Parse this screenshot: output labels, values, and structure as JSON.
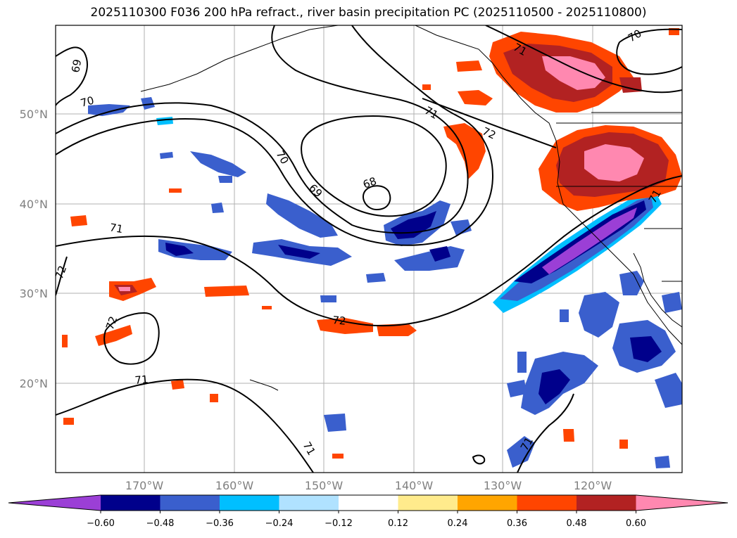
{
  "title": "2025110300 F036 200 hPa refract., river basin precipitation PC (2025110500 - 2025110800)",
  "lat_labels": [
    "50°N",
    "40°N",
    "30°N",
    "20°N"
  ],
  "lon_labels": [
    "170°W",
    "160°W",
    "150°W",
    "140°W",
    "130°W",
    "120°W"
  ],
  "contour_labels": [
    "69",
    "70",
    "71",
    "68",
    "69",
    "70",
    "71",
    "72",
    "71",
    "72",
    "72",
    "72",
    "71",
    "71",
    "70",
    "71",
    "71"
  ],
  "colorbar": {
    "tick_labels": [
      "-0.60",
      "-0.48",
      "-0.36",
      "-0.24",
      "-0.12",
      "0.12",
      "0.24",
      "0.36",
      "0.48",
      "0.60"
    ],
    "colors": [
      "#9b3fd6",
      "#00008b",
      "#3a5fcd",
      "#00bfff",
      "#b0e2ff",
      "#ffffff",
      "#ffeb8c",
      "#ffa500",
      "#ff4500",
      "#b22222",
      "#ff88b0"
    ]
  },
  "colors": {
    "neg_strong": "#9b3fd6",
    "neg_dark": "#00008b",
    "neg_mid": "#3a5fcd",
    "neg_light": "#00bfff",
    "neg_pale": "#b0e2ff",
    "pos_pale": "#ffeb8c",
    "pos_light": "#ffa500",
    "pos_mid": "#ff4500",
    "pos_dark": "#b22222",
    "pos_strong": "#ff88b0"
  }
}
